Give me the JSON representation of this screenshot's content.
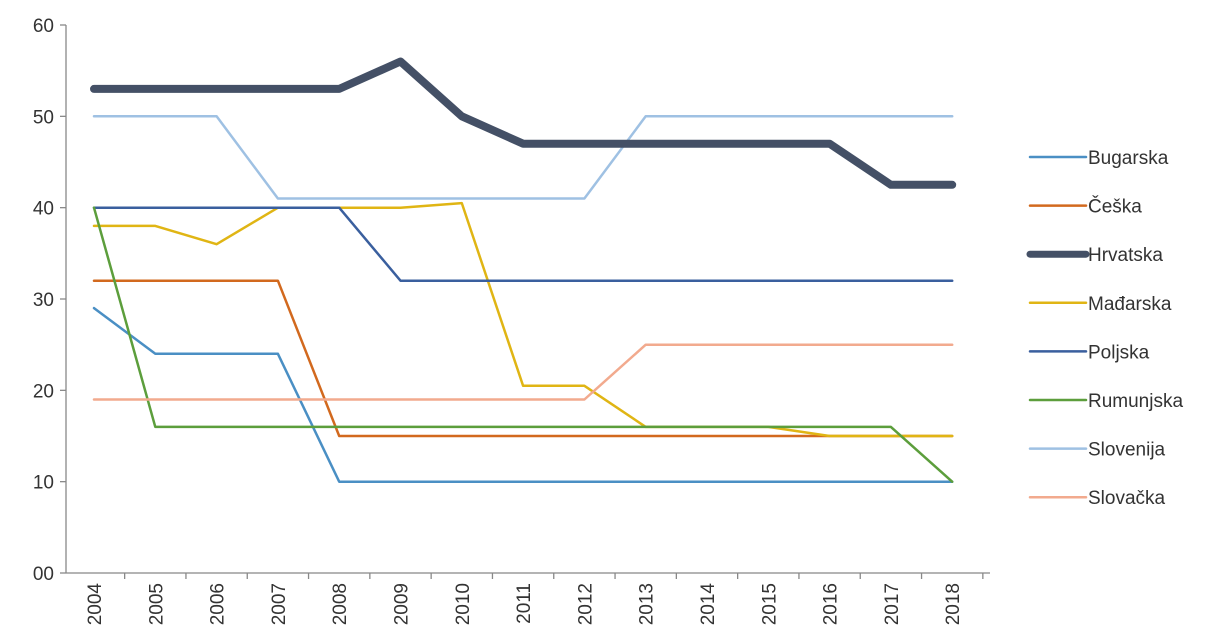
{
  "chart_data": {
    "type": "line",
    "title": "",
    "xlabel": "",
    "ylabel": "",
    "x": [
      "2004",
      "2005",
      "2006",
      "2007",
      "2008",
      "2009",
      "2010",
      "2011",
      "2012",
      "2013",
      "2014",
      "2015",
      "2016",
      "2017",
      "2018"
    ],
    "ylim": [
      0,
      60
    ],
    "y_ticks": [
      {
        "value": 0,
        "label": "00"
      },
      {
        "value": 10,
        "label": "10"
      },
      {
        "value": 20,
        "label": "20"
      },
      {
        "value": 30,
        "label": "30"
      },
      {
        "value": 40,
        "label": "40"
      },
      {
        "value": 50,
        "label": "50"
      },
      {
        "value": 60,
        "label": "60"
      }
    ],
    "grid": false,
    "legend_position": "right",
    "series": [
      {
        "name": "Bugarska",
        "color": "#4a8fc4",
        "width": 2.5,
        "values": [
          29,
          24,
          24,
          24,
          10,
          10,
          10,
          10,
          10,
          10,
          10,
          10,
          10,
          10,
          10
        ]
      },
      {
        "name": "Češka",
        "color": "#d2691e",
        "width": 2.5,
        "values": [
          32,
          32,
          32,
          32,
          15,
          15,
          15,
          15,
          15,
          15,
          15,
          15,
          15,
          15,
          15
        ]
      },
      {
        "name": "Hrvatska",
        "color": "#445066",
        "width": 8,
        "values": [
          53,
          53,
          53,
          53,
          53,
          56,
          50,
          47,
          47,
          47,
          47,
          47,
          47,
          42.5,
          42.5
        ]
      },
      {
        "name": "Mađarska",
        "color": "#e0b514",
        "width": 2.5,
        "values": [
          38,
          38,
          36,
          40,
          40,
          40,
          40.5,
          20.5,
          20.5,
          16,
          16,
          16,
          15,
          15,
          15
        ]
      },
      {
        "name": "Poljska",
        "color": "#3a5f9e",
        "width": 2.5,
        "values": [
          40,
          40,
          40,
          40,
          40,
          32,
          32,
          32,
          32,
          32,
          32,
          32,
          32,
          32,
          32
        ]
      },
      {
        "name": "Rumunjska",
        "color": "#5c9e3c",
        "width": 2.5,
        "values": [
          40,
          16,
          16,
          16,
          16,
          16,
          16,
          16,
          16,
          16,
          16,
          16,
          16,
          16,
          10
        ]
      },
      {
        "name": "Slovenija",
        "color": "#9fc1e3",
        "width": 2.5,
        "values": [
          50,
          50,
          50,
          41,
          41,
          41,
          41,
          41,
          41,
          50,
          50,
          50,
          50,
          50,
          50
        ]
      },
      {
        "name": "Slovačka",
        "color": "#f2aa8e",
        "width": 2.5,
        "values": [
          19,
          19,
          19,
          19,
          19,
          19,
          19,
          19,
          19,
          25,
          25,
          25,
          25,
          25,
          25
        ]
      }
    ]
  }
}
